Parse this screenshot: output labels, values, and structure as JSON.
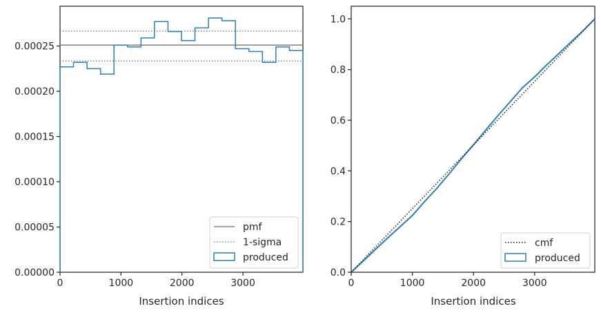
{
  "chart_data": [
    {
      "type": "step",
      "xlabel": "Insertion indices",
      "ylabel": "",
      "xlim": [
        0,
        3984
      ],
      "ylim": [
        0,
        0.000294
      ],
      "xticks": [
        0,
        1000,
        2000,
        3000
      ],
      "xtick_labels": [
        "0",
        "1000",
        "2000",
        "3000"
      ],
      "yticks": [
        0,
        5e-05,
        0.0001,
        0.00015,
        0.0002,
        0.00025
      ],
      "ytick_labels": [
        "0.00000",
        "0.00005",
        "0.00010",
        "0.00015",
        "0.00020",
        "0.00025"
      ],
      "grid": false,
      "legend_position": "lower-right",
      "lines": [
        {
          "name": "pmf",
          "y": 0.000251,
          "color": "#808080",
          "style": "solid"
        },
        {
          "name": "1-sigma",
          "y": [
            0.0002665,
            0.0002335
          ],
          "color": "#808080",
          "style": "dotted"
        }
      ],
      "series": [
        {
          "name": "produced",
          "color": "#2a7db6",
          "bin_edges": [
            0,
            221,
            443,
            664,
            885,
            1107,
            1328,
            1549,
            1771,
            1992,
            2213,
            2435,
            2656,
            2877,
            3099,
            3320,
            3541,
            3763,
            3984
          ],
          "values": [
            0.000227,
            0.000232,
            0.000225,
            0.000219,
            0.000251,
            0.000249,
            0.000259,
            0.000277,
            0.000266,
            0.000256,
            0.00027,
            0.000281,
            0.000278,
            0.000247,
            0.000244,
            0.000232,
            0.000249,
            0.000245
          ]
        }
      ]
    },
    {
      "type": "line",
      "xlabel": "Insertion indices",
      "ylabel": "",
      "xlim": [
        0,
        3984
      ],
      "ylim": [
        0,
        1.05
      ],
      "xticks": [
        0,
        1000,
        2000,
        3000
      ],
      "xtick_labels": [
        "0",
        "1000",
        "2000",
        "3000"
      ],
      "yticks": [
        0,
        0.2,
        0.4,
        0.6,
        0.8,
        1.0
      ],
      "ytick_labels": [
        "0.0",
        "0.2",
        "0.4",
        "0.6",
        "0.8",
        "1.0"
      ],
      "grid": false,
      "legend_position": "lower-right",
      "series": [
        {
          "name": "cmf",
          "color": "#1a1a1a",
          "style": "dotted",
          "x": [
            0,
            3984
          ],
          "y": [
            0,
            1.0
          ]
        },
        {
          "name": "produced",
          "color": "#2a7db6",
          "style": "solid",
          "x": [
            0,
            200,
            400,
            600,
            800,
            1000,
            1200,
            1400,
            1600,
            1800,
            2000,
            2200,
            2400,
            2600,
            2800,
            3000,
            3200,
            3400,
            3600,
            3800,
            3984
          ],
          "y": [
            0,
            0.045,
            0.091,
            0.136,
            0.18,
            0.224,
            0.279,
            0.331,
            0.388,
            0.447,
            0.503,
            0.561,
            0.618,
            0.673,
            0.728,
            0.771,
            0.819,
            0.864,
            0.91,
            0.955,
            1.0
          ]
        }
      ]
    }
  ]
}
